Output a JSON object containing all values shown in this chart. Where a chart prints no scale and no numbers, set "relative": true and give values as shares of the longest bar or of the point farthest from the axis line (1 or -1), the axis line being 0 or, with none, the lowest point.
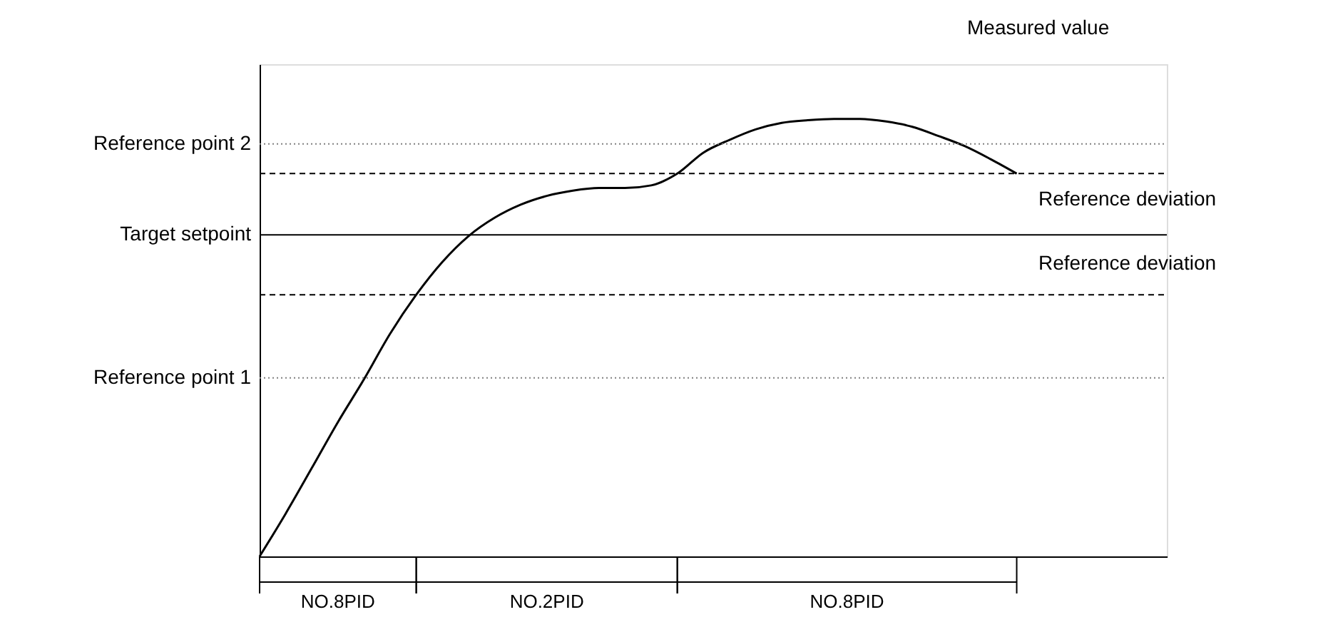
{
  "chart_data": {
    "type": "line",
    "relative": true,
    "categories": [
      null,
      null,
      null,
      null,
      null,
      null,
      null,
      null,
      null,
      null,
      null,
      null,
      null,
      null,
      null,
      null,
      null,
      null,
      null,
      null,
      null,
      null,
      null,
      null,
      null,
      null,
      null,
      null,
      null,
      null
    ],
    "series": [
      {
        "color": "#000000",
        "values": [
          0,
          0.098,
          0.202,
          0.307,
          0.405,
          0.509,
          0.598,
          0.673,
          0.732,
          0.774,
          0.804,
          0.824,
          0.836,
          0.842,
          0.842,
          0.848,
          0.875,
          0.923,
          0.952,
          0.976,
          0.991,
          0.997,
          1,
          1,
          0.994,
          0.982,
          0.961,
          0.938,
          0.908,
          0.875
        ]
      }
    ],
    "ref_lines": [
      {
        "axis": "y",
        "value": 0.943,
        "label": "Reference point 2",
        "color": "#808080",
        "line_style": "dotted"
      },
      {
        "axis": "y",
        "value": 0.875,
        "color": "#000000",
        "line_style": "dashed"
      },
      {
        "axis": "y",
        "value": 0.735,
        "label": "Target setpoint",
        "color": "#000000",
        "line_style": "solid"
      },
      {
        "axis": "y",
        "value": 0.598,
        "color": "#000000",
        "line_style": "dashed"
      },
      {
        "axis": "y",
        "value": 0.408,
        "label": "Reference point 1",
        "color": "#808080",
        "line_style": "dotted"
      }
    ],
    "annotations": [
      "Measured value",
      "Reference deviation",
      "Reference deviation",
      "NO.8PID",
      "NO.2PID",
      "NO.8PID"
    ],
    "grid": false,
    "marker": "none",
    "line_style": "solid"
  }
}
